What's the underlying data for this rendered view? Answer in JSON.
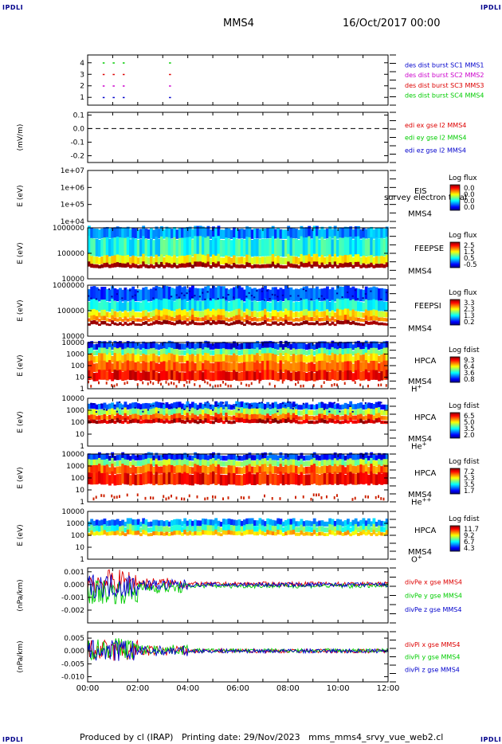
{
  "header": {
    "corner_left_top": "IPDLI",
    "corner_right_top": "IPDLI",
    "corner_left_bottom": "IPDLI",
    "corner_right_bottom": "IPDLI",
    "title": "MMS4",
    "date": "16/Oct/2017 00:00"
  },
  "footer": {
    "text": "Produced by cl (IRAP)   Printing date: 29/Nov/2023   mms_mms4_srvy_vue_web2.cl"
  },
  "chart_data": [
    {
      "type": "scatter",
      "title": "burst availability",
      "ylabel": "",
      "ylim": [
        0.6,
        4.4
      ],
      "yticks": [
        "1",
        "2",
        "3",
        "4"
      ],
      "legend": [
        {
          "name": "des dist burst SC1 MMS1",
          "color": "#0000cc"
        },
        {
          "name": "des dist burst SC2 MMS2",
          "color": "#cc00cc"
        },
        {
          "name": "des dist burst SC3 MMS3",
          "color": "#dd0000"
        },
        {
          "name": "des dist burst SC4 MMS4",
          "color": "#00cc00"
        }
      ],
      "marks": [
        {
          "y": 4,
          "times": [
            0.6,
            1.0,
            1.4,
            3.25
          ],
          "color": "#00cc00"
        },
        {
          "y": 3,
          "times": [
            0.6,
            1.0,
            1.4,
            3.25
          ],
          "color": "#dd0000"
        },
        {
          "y": 2,
          "times": [
            0.6,
            1.0,
            1.4,
            3.25
          ],
          "color": "#cc00cc"
        },
        {
          "y": 1,
          "times": [
            0.6,
            1.0,
            1.4,
            3.25
          ],
          "color": "#0000cc"
        }
      ]
    },
    {
      "type": "line",
      "ylabel": "(mV/m)",
      "ylim": [
        -0.25,
        0.12
      ],
      "yticks": [
        "0.1",
        "0.0",
        "-0.1",
        "-0.2"
      ],
      "legend": [
        {
          "name": "edi ex gse l2 MMS4",
          "color": "#dd0000"
        },
        {
          "name": "edi ey gse l2 MMS4",
          "color": "#00cc00"
        },
        {
          "name": "edi ez gse l2 MMS4",
          "color": "#0000cc"
        }
      ],
      "zero_line": true
    },
    {
      "type": "heatmap",
      "ylabel": "E (eV)",
      "yticks": [
        "1e+07",
        "1e+06",
        "1e+05",
        "1e+04"
      ],
      "instrument": "EIS",
      "subtitle": "survey electron total",
      "sc": "MMS4",
      "colorbar_title": "Log flux",
      "colorbar_ticks": [
        "0.0",
        "0.0",
        "0.0",
        "0.0"
      ],
      "empty": true
    },
    {
      "type": "heatmap",
      "ylabel": "E (eV)",
      "yticks": [
        "1000000",
        "100000",
        "10000"
      ],
      "instrument": "FEEPSE",
      "sc": "MMS4",
      "colorbar_title": "Log flux",
      "colorbar_ticks": [
        "2.5",
        "1.5",
        "0.5",
        "-0.5"
      ]
    },
    {
      "type": "heatmap",
      "ylabel": "E (eV)",
      "yticks": [
        "1000000",
        "100000",
        "10000"
      ],
      "instrument": "FEEPSI",
      "sc": "MMS4",
      "colorbar_title": "Log flux",
      "colorbar_ticks": [
        "3.3",
        "2.3",
        "1.3",
        "0.2"
      ]
    },
    {
      "type": "heatmap",
      "ylabel": "E (eV)",
      "yticks": [
        "10000",
        "1000",
        "100",
        "10",
        "1"
      ],
      "instrument": "HPCA",
      "sc": "MMS4",
      "species": "H",
      "species_sup": "+",
      "colorbar_title": "Log fdist",
      "colorbar_ticks": [
        "9.3",
        "6.4",
        "3.6",
        "0.8"
      ]
    },
    {
      "type": "heatmap",
      "ylabel": "E (eV)",
      "yticks": [
        "10000",
        "1000",
        "100",
        "10",
        "1"
      ],
      "instrument": "HPCA",
      "sc": "MMS4",
      "species": "He",
      "species_sup": "+",
      "colorbar_title": "Log fdist",
      "colorbar_ticks": [
        "6.5",
        "5.0",
        "3.5",
        "2.0"
      ]
    },
    {
      "type": "heatmap",
      "ylabel": "E (eV)",
      "yticks": [
        "10000",
        "1000",
        "100",
        "10",
        "1"
      ],
      "instrument": "HPCA",
      "sc": "MMS4",
      "species": "He",
      "species_sup": "++",
      "colorbar_title": "Log fdist",
      "colorbar_ticks": [
        "7.2",
        "5.3",
        "3.5",
        "1.7"
      ]
    },
    {
      "type": "heatmap",
      "ylabel": "E (eV)",
      "yticks": [
        "10000",
        "1000",
        "100",
        "10",
        "1"
      ],
      "instrument": "HPCA",
      "sc": "MMS4",
      "species": "O",
      "species_sup": "+",
      "colorbar_title": "Log fdist",
      "colorbar_ticks": [
        "11.7",
        "9.2",
        "6.7",
        "4.3"
      ]
    },
    {
      "type": "line",
      "ylabel": "(nPa/km)",
      "ylim": [
        -0.003,
        0.0013
      ],
      "yticks": [
        "0.001",
        "0.000",
        "-0.001",
        "-0.002"
      ],
      "legend": [
        {
          "name": "divPe x gse MMS4",
          "color": "#dd0000"
        },
        {
          "name": "divPe y gse MMS4",
          "color": "#00cc00"
        },
        {
          "name": "divPe z gse MMS4",
          "color": "#0000cc"
        }
      ]
    },
    {
      "type": "line",
      "ylabel": "(nPa/km)",
      "ylim": [
        -0.012,
        0.0075
      ],
      "yticks": [
        "0.005",
        "0.000",
        "-0.005",
        "-0.010"
      ],
      "legend": [
        {
          "name": "divPi x gse MMS4",
          "color": "#dd0000"
        },
        {
          "name": "divPi y gse MMS4",
          "color": "#00cc00"
        },
        {
          "name": "divPi z gse MMS4",
          "color": "#0000cc"
        }
      ]
    }
  ],
  "xaxis": {
    "ticks": [
      "00:00",
      "02:00",
      "04:00",
      "06:00",
      "08:00",
      "10:00",
      "12:00"
    ],
    "range_hours": [
      0,
      12
    ]
  }
}
